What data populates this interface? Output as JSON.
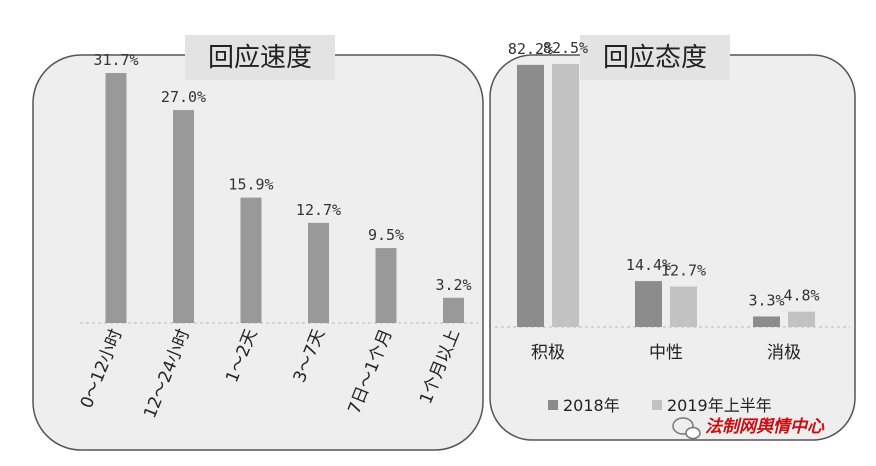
{
  "chart_data": [
    {
      "type": "bar",
      "title": "回应速度",
      "categories": [
        "0～12小时",
        "12～24小时",
        "1～2天",
        "3～7天",
        "7日～1个月",
        "1个月以上"
      ],
      "values": [
        31.7,
        27.0,
        15.9,
        12.7,
        9.5,
        3.2
      ],
      "value_labels": [
        "31.7%",
        "27.0%",
        "15.9%",
        "12.7%",
        "9.5%",
        "3.2%"
      ],
      "ylim": [
        0,
        35
      ],
      "grid": false,
      "colors": {
        "bar": "#999999"
      }
    },
    {
      "type": "bar",
      "title": "回应态度",
      "categories": [
        "积极",
        "中性",
        "消极"
      ],
      "series": [
        {
          "name": "2018年",
          "values": [
            82.2,
            14.4,
            3.3
          ],
          "labels": [
            "82.2%",
            "14.4%",
            "3.3%"
          ],
          "color": "#8c8c8c"
        },
        {
          "name": "2019年上半年",
          "values": [
            82.5,
            12.7,
            4.8
          ],
          "labels": [
            "82.5%",
            "12.7%",
            "4.8%"
          ],
          "color": "#c2c2c2"
        }
      ],
      "ylim": [
        0,
        90
      ],
      "grid": false,
      "legend_position": "bottom"
    }
  ],
  "watermark": {
    "text": "法制网舆情中心",
    "icon": "wechat-icon"
  },
  "colors": {
    "panel_bg": "#eeeeee",
    "panel_border": "#555555",
    "title_bg": "#e3e3e3",
    "watermark": "#c80f14"
  }
}
